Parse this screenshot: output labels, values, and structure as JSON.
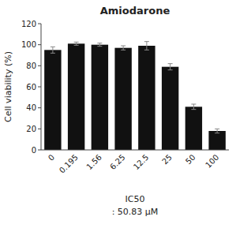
{
  "chart_data": {
    "type": "bar",
    "title": "Amiodarone",
    "ylabel": "Cell viability (%)",
    "categories": [
      "0",
      "0.195",
      "1.56",
      "6.25",
      "12.5",
      "25",
      "50",
      "100"
    ],
    "values": [
      95,
      101,
      100,
      97,
      99,
      79,
      41,
      18
    ],
    "errors": [
      3,
      1.5,
      1.5,
      2,
      4,
      3,
      2.5,
      2
    ],
    "color": "#111111",
    "ylim": [
      0,
      120
    ],
    "yticks": [
      0,
      20,
      40,
      60,
      80,
      100,
      120
    ],
    "annotations": [
      "IC50",
      ": 50.83 μM"
    ],
    "grid": false
  }
}
